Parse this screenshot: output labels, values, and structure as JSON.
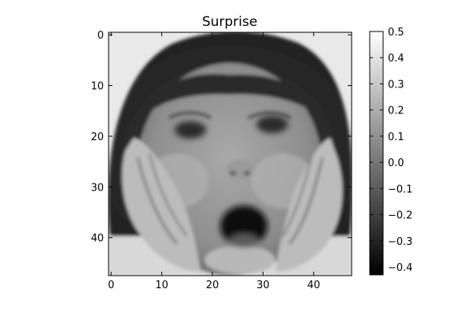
{
  "chart_data": {
    "type": "heatmap",
    "title": "Surprise",
    "image_description": "grayscale face of a surprised child with open mouth and hands on cheeks",
    "x_range": [
      -0.5,
      47.5
    ],
    "y_range": [
      -0.5,
      47.5
    ],
    "y_inverted": true,
    "x_ticks": [
      0,
      10,
      20,
      30,
      40
    ],
    "y_ticks": [
      0,
      10,
      20,
      30,
      40
    ],
    "colormap": "gray",
    "color_range": [
      -0.43,
      0.5
    ],
    "colorbar_ticks": [
      "0.5",
      "0.4",
      "0.3",
      "0.2",
      "0.1",
      "0.0",
      "−0.1",
      "−0.2",
      "−0.3",
      "−0.4"
    ],
    "colorbar_values": [
      0.5,
      0.4,
      0.3,
      0.2,
      0.1,
      0.0,
      -0.1,
      -0.2,
      -0.3,
      -0.4
    ]
  }
}
